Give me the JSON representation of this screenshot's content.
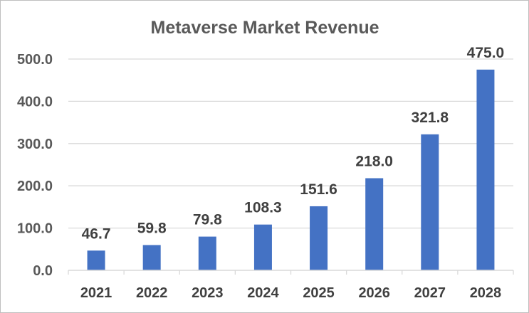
{
  "chart_data": {
    "type": "bar",
    "title": "Metaverse Market Revenue",
    "xlabel": "",
    "ylabel": "",
    "categories": [
      "2021",
      "2022",
      "2023",
      "2024",
      "2025",
      "2026",
      "2027",
      "2028"
    ],
    "values": [
      46.7,
      59.8,
      79.8,
      108.3,
      151.6,
      218.0,
      321.8,
      475.0
    ],
    "data_labels": [
      "46.7",
      "59.8",
      "79.8",
      "108.3",
      "151.6",
      "218.0",
      "321.8",
      "475.0"
    ],
    "ylim": [
      0,
      500
    ],
    "yticks": [
      0,
      100,
      200,
      300,
      400,
      500
    ],
    "ytick_labels": [
      "0.0",
      "100.0",
      "200.0",
      "300.0",
      "400.0",
      "500.0"
    ],
    "grid": true,
    "legend": "none",
    "bar_color": "#4472C4",
    "grid_color": "#d9d9d9"
  }
}
